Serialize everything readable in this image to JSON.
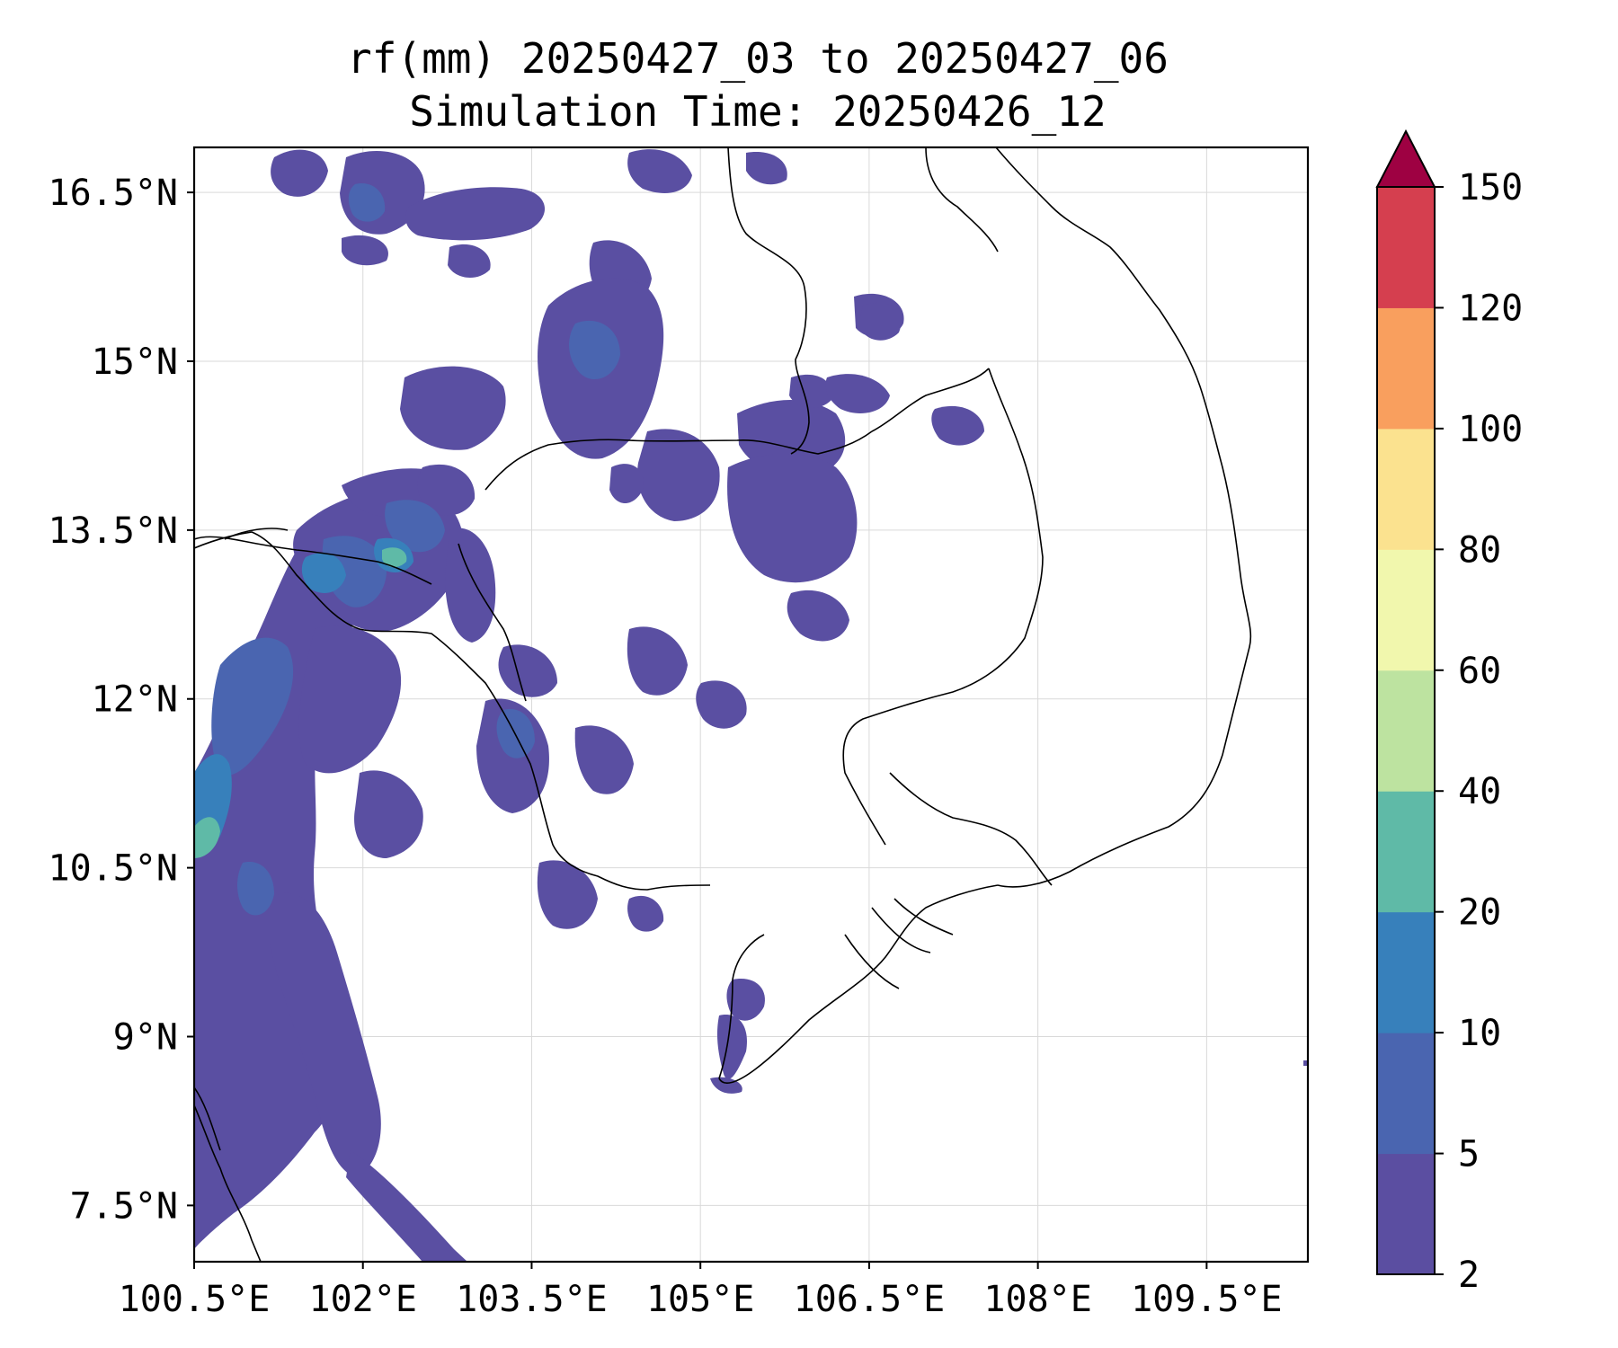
{
  "map": {
    "title_line1": "rf(mm) 20250427_03 to 20250427_06",
    "title_line2": "Simulation Time: 20250426_12",
    "lon_ticks": [
      "100.5°E",
      "102°E",
      "103.5°E",
      "105°E",
      "106.5°E",
      "108°E",
      "109.5°E"
    ],
    "lat_ticks": [
      "16.5°N",
      "15°N",
      "13.5°N",
      "12°N",
      "10.5°N",
      "9°N",
      "7.5°N"
    ],
    "lon_range": [
      100.5,
      110.4
    ],
    "lat_range": [
      7.0,
      16.9
    ],
    "gridlines": true,
    "variable": "rf",
    "units": "mm"
  },
  "colorbar": {
    "levels": [
      "2",
      "5",
      "10",
      "20",
      "40",
      "60",
      "80",
      "100",
      "120",
      "150"
    ],
    "colors": [
      "#5b4ea1",
      "#4a65b0",
      "#3780bb",
      "#5fbaa7",
      "#bde3a0",
      "#f1f7ad",
      "#fbe28f",
      "#f99f5e",
      "#d53f4f"
    ],
    "extend_color": "#9e0142",
    "extend": "max",
    "position": "right"
  }
}
